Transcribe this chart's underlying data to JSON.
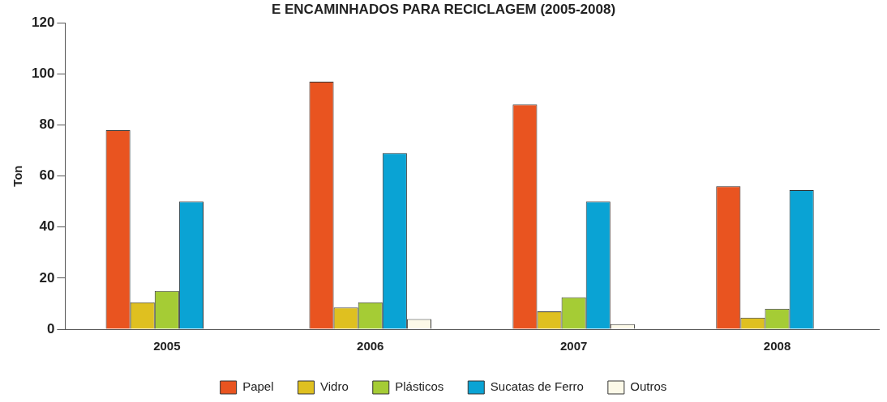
{
  "chart_data": {
    "type": "bar",
    "title": "E ENCAMINHADOS PARA RECICLAGEM (2005-2008)",
    "ylabel": "Ton",
    "categories": [
      "2005",
      "2006",
      "2007",
      "2008"
    ],
    "series": [
      {
        "name": "Papel",
        "color": "#e95420",
        "values": [
          78,
          97,
          88,
          56
        ]
      },
      {
        "name": "Vidro",
        "color": "#dfc020",
        "values": [
          10.5,
          8.5,
          7,
          4.5
        ]
      },
      {
        "name": "Plásticos",
        "color": "#a5cc35",
        "values": [
          15,
          10.5,
          12.5,
          8
        ]
      },
      {
        "name": "Sucatas de Ferro",
        "color": "#0aa3d4",
        "values": [
          50,
          69,
          50,
          54.5
        ]
      },
      {
        "name": "Outros",
        "color": "#fcf9e8",
        "values": [
          0,
          4,
          2,
          0
        ]
      }
    ],
    "ylim": [
      0,
      120
    ],
    "yticks": [
      0,
      20,
      40,
      60,
      80,
      100,
      120
    ],
    "grid": false,
    "legend": "bottom"
  }
}
